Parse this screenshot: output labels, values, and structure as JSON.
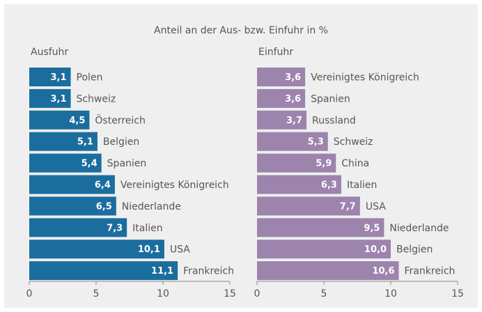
{
  "title": "Anteil an der Aus- bzw. Einfuhr in %",
  "chart_data": [
    {
      "type": "hbar",
      "subtitle": "Ausfuhr",
      "color": "#1b6d9e",
      "categories": [
        "Polen",
        "Schweiz",
        "Österreich",
        "Belgien",
        "Spanien",
        "Vereinigtes Königreich",
        "Niederlande",
        "Italien",
        "USA",
        "Frankreich"
      ],
      "values": [
        3.1,
        3.1,
        4.5,
        5.1,
        5.4,
        6.4,
        6.5,
        7.3,
        10.1,
        11.1
      ],
      "value_labels": [
        "3,1",
        "3,1",
        "4,5",
        "5,1",
        "5,4",
        "6,4",
        "6,5",
        "7,3",
        "10,1",
        "11,1"
      ],
      "xlim": [
        0,
        15
      ],
      "xticks": [
        0,
        5,
        10,
        15
      ]
    },
    {
      "type": "hbar",
      "subtitle": "Einfuhr",
      "color": "#9c84ad",
      "categories": [
        "Vereinigtes Königreich",
        "Spanien",
        "Russland",
        "Schweiz",
        "China",
        "Italien",
        "USA",
        "Niederlande",
        "Belgien",
        "Frankreich"
      ],
      "values": [
        3.6,
        3.6,
        3.7,
        5.3,
        5.9,
        6.3,
        7.7,
        9.5,
        10.0,
        10.6
      ],
      "value_labels": [
        "3,6",
        "3,6",
        "3,7",
        "5,3",
        "5,9",
        "6,3",
        "7,7",
        "9,5",
        "10,0",
        "10,6"
      ],
      "xlim": [
        0,
        15
      ],
      "xticks": [
        0,
        5,
        10,
        15
      ]
    }
  ]
}
